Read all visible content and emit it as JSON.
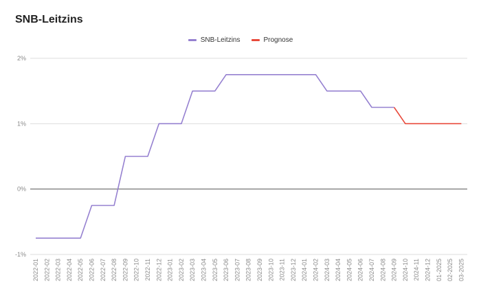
{
  "chart_data": {
    "type": "line",
    "title": "SNB-Leitzins",
    "xlabel": "",
    "ylabel": "",
    "ylim": [
      -1,
      2
    ],
    "yticks": [
      {
        "value": 2,
        "label": "2%"
      },
      {
        "value": 1,
        "label": "1%"
      },
      {
        "value": 0,
        "label": "0%"
      },
      {
        "value": -1,
        "label": "-1%"
      }
    ],
    "grid": true,
    "legend_position": "top-center",
    "categories": [
      "2022-01",
      "2022-02",
      "2022-03",
      "2022-04",
      "2022-05",
      "2022-06",
      "2022-07",
      "2022-08",
      "2022-09",
      "2022-10",
      "2022-11",
      "2022-12",
      "2023-01",
      "2023-02",
      "2023-03",
      "2023-04",
      "2023-05",
      "2023-06",
      "2023-07",
      "2023-08",
      "2023-09",
      "2023-10",
      "2023-11",
      "2023-12",
      "2024-01",
      "2024-02",
      "2024-03",
      "2024-04",
      "2024-05",
      "2024-06",
      "2024-07",
      "2024-08",
      "2024-09",
      "2024-10",
      "2024-11",
      "2024-12",
      "01-2025",
      "02-2025",
      "03-2025"
    ],
    "series": [
      {
        "name": "SNB-Leitzins",
        "color": "#9580d0",
        "values": [
          -0.75,
          -0.75,
          -0.75,
          -0.75,
          -0.75,
          -0.25,
          -0.25,
          -0.25,
          0.5,
          0.5,
          0.5,
          1.0,
          1.0,
          1.0,
          1.5,
          1.5,
          1.5,
          1.75,
          1.75,
          1.75,
          1.75,
          1.75,
          1.75,
          1.75,
          1.75,
          1.75,
          1.5,
          1.5,
          1.5,
          1.5,
          1.25,
          1.25,
          1.25,
          null,
          null,
          null,
          null,
          null,
          null
        ]
      },
      {
        "name": "Prognose",
        "color": "#e8493a",
        "values": [
          null,
          null,
          null,
          null,
          null,
          null,
          null,
          null,
          null,
          null,
          null,
          null,
          null,
          null,
          null,
          null,
          null,
          null,
          null,
          null,
          null,
          null,
          null,
          null,
          null,
          null,
          null,
          null,
          null,
          null,
          null,
          null,
          1.25,
          1.0,
          1.0,
          1.0,
          1.0,
          1.0,
          1.0
        ]
      }
    ]
  }
}
